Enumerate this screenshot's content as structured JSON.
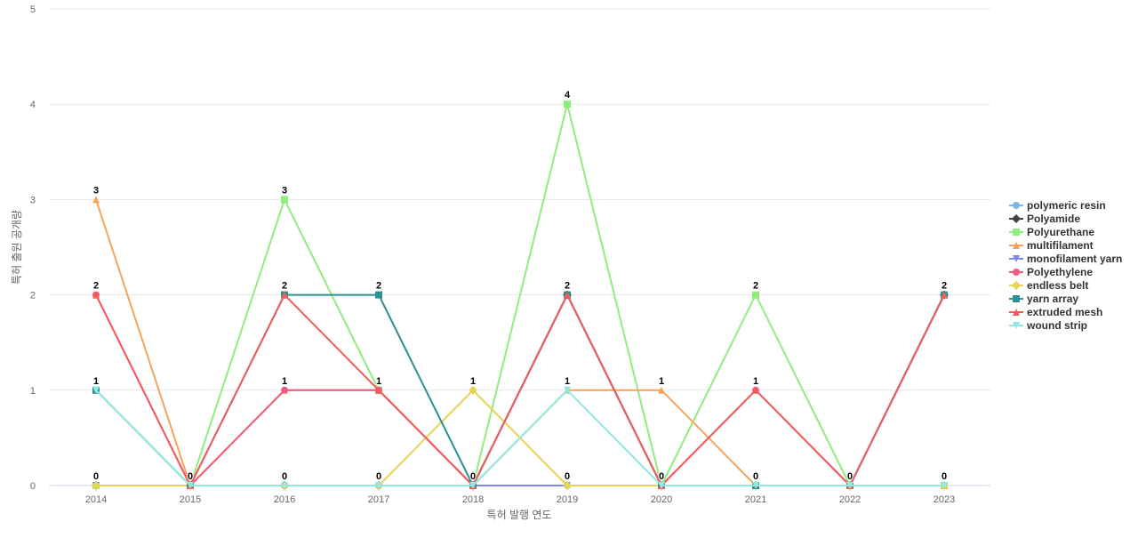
{
  "chart_data": {
    "type": "line",
    "title": "",
    "xlabel": "특허 발행 연도",
    "ylabel": "특허 출원 공개량",
    "categories": [
      "2014",
      "2015",
      "2016",
      "2017",
      "2018",
      "2019",
      "2020",
      "2021",
      "2022",
      "2023"
    ],
    "ylim": [
      0,
      5
    ],
    "yticks": [
      "0",
      "1",
      "2",
      "3",
      "4",
      "5"
    ],
    "grid": true,
    "legend_position": "right",
    "series": [
      {
        "name": "polymeric resin",
        "color": "#7cb5ec",
        "marker": "circle",
        "values": [
          0,
          0,
          0,
          0,
          0,
          0,
          0,
          0,
          0,
          0
        ]
      },
      {
        "name": "Polyamide",
        "color": "#434348",
        "marker": "diamond",
        "values": [
          0,
          0,
          0,
          0,
          0,
          2,
          0,
          0,
          0,
          2
        ]
      },
      {
        "name": "Polyurethane",
        "color": "#90ed7d",
        "marker": "square",
        "values": [
          0,
          0,
          3,
          1,
          0,
          4,
          0,
          2,
          0,
          0
        ]
      },
      {
        "name": "multifilament",
        "color": "#f7a35c",
        "marker": "triangle",
        "values": [
          3,
          0,
          1,
          1,
          0,
          1,
          1,
          0,
          0,
          0
        ]
      },
      {
        "name": "monofilament yarn",
        "color": "#8085e9",
        "marker": "triangle-down",
        "values": [
          0,
          0,
          0,
          0,
          0,
          0,
          0,
          0,
          0,
          0
        ]
      },
      {
        "name": "Polyethylene",
        "color": "#f15c80",
        "marker": "circle",
        "values": [
          2,
          0,
          1,
          1,
          0,
          2,
          0,
          1,
          0,
          2
        ]
      },
      {
        "name": "endless belt",
        "color": "#e4d354",
        "marker": "diamond",
        "values": [
          0,
          0,
          0,
          0,
          1,
          0,
          0,
          0,
          0,
          0
        ]
      },
      {
        "name": "yarn array",
        "color": "#2b908f",
        "marker": "square",
        "values": [
          1,
          0,
          2,
          2,
          0,
          2,
          0,
          0,
          0,
          2
        ]
      },
      {
        "name": "extruded mesh",
        "color": "#f45b5b",
        "marker": "triangle",
        "values": [
          2,
          0,
          2,
          1,
          0,
          2,
          0,
          1,
          0,
          2
        ]
      },
      {
        "name": "wound strip",
        "color": "#91e8e1",
        "marker": "triangle-down",
        "values": [
          1,
          0,
          0,
          0,
          0,
          1,
          0,
          0,
          0,
          0
        ]
      }
    ]
  }
}
